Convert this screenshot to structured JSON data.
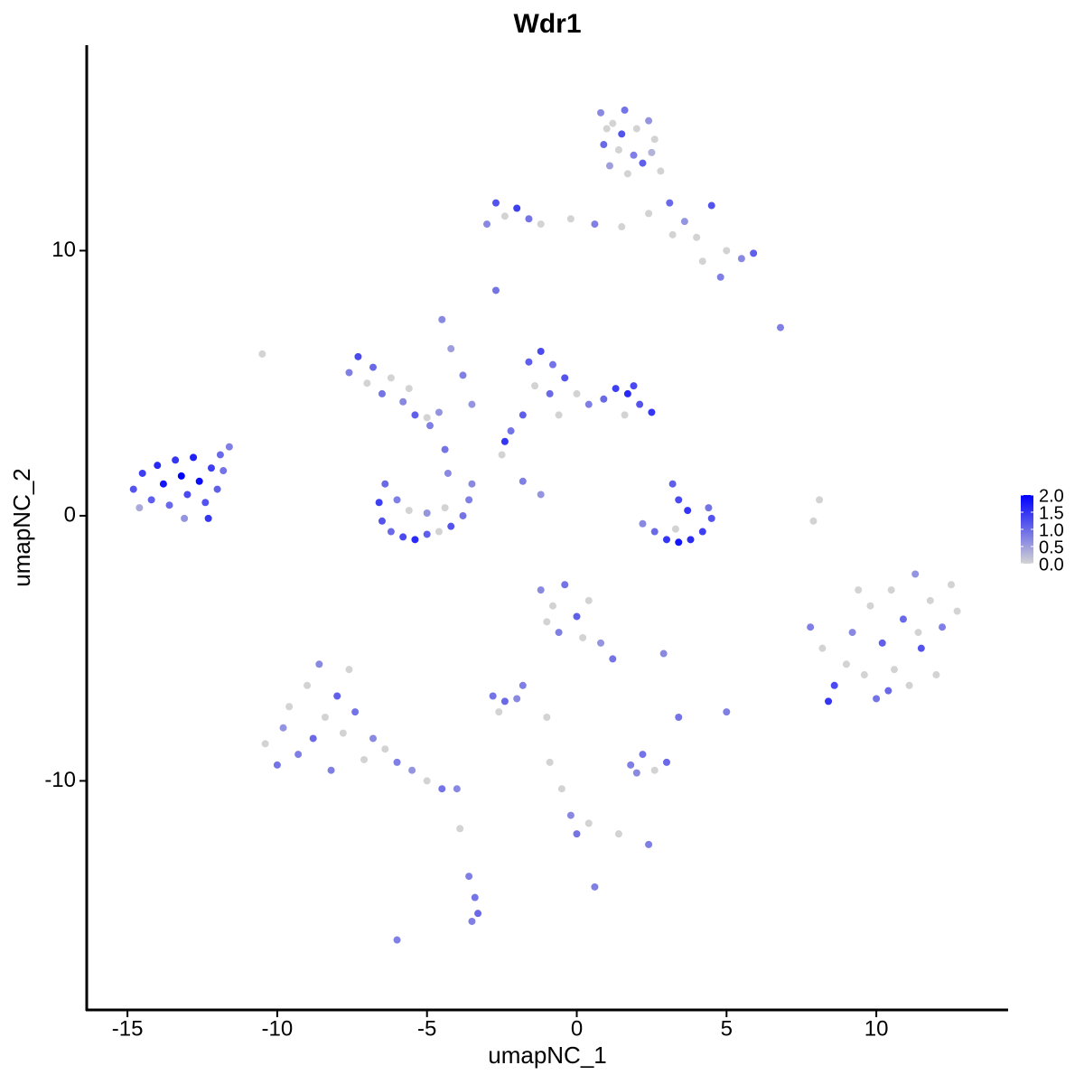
{
  "chart_data": {
    "type": "scatter",
    "title": "Wdr1",
    "x_label": "umapNC_1",
    "y_label": "umapNC_2",
    "xlim": [
      -16.36,
      14.4
    ],
    "ylim": [
      -18.64,
      17.75
    ],
    "xticks": [
      -15,
      -10,
      -5,
      0,
      5,
      10
    ],
    "yticks": [
      -10,
      0,
      10
    ],
    "color_low": "#d3d3d3",
    "color_high": "#0000ff",
    "clim": [
      0,
      2
    ],
    "cticks": [
      {
        "value": 0,
        "label": "0.0"
      },
      {
        "value": 0.5,
        "label": "0.5"
      },
      {
        "value": 1,
        "label": "1.0"
      },
      {
        "value": 1.5,
        "label": "1.5"
      },
      {
        "value": 2,
        "label": "2.0"
      }
    ],
    "x": [
      -14.8,
      -14.5,
      -14.2,
      -14.0,
      -13.8,
      -13.6,
      -13.4,
      -13.2,
      -13.0,
      -12.8,
      -12.6,
      -12.4,
      -12.2,
      -12.0,
      -12.3,
      -11.8,
      -11.6,
      -11.9,
      -14.6,
      -13.1,
      0.8,
      1.2,
      1.6,
      2.0,
      2.4,
      0.9,
      1.4,
      1.9,
      2.6,
      1.1,
      1.7,
      2.2,
      2.8,
      1.5,
      2.5,
      1.0,
      -3.0,
      -2.7,
      -2.4,
      -2.0,
      -1.6,
      -1.2,
      -0.2,
      0.6,
      1.5,
      2.4,
      3.1,
      3.6,
      4.0,
      4.5,
      5.0,
      5.5,
      5.9,
      4.8,
      4.2,
      3.2,
      -7.6,
      -7.3,
      -7.0,
      -6.8,
      -6.5,
      -6.2,
      -5.8,
      -5.4,
      -5.0,
      -4.6,
      -4.9,
      -5.6,
      -4.5,
      -4.2,
      -3.8,
      -3.5,
      -4.4,
      -4.3,
      -6.4,
      -6.6,
      -6.5,
      -6.2,
      -5.8,
      -5.4,
      -5.0,
      -4.6,
      -4.2,
      -3.8,
      -3.6,
      -3.5,
      -5.6,
      -5.0,
      -4.4,
      -6.0,
      -1.6,
      -1.2,
      -0.8,
      -1.4,
      -0.9,
      -0.4,
      0.0,
      0.4,
      0.9,
      1.3,
      1.7,
      2.1,
      2.5,
      1.6,
      -1.8,
      -2.2,
      -0.6,
      1.9,
      -2.4,
      -1.8,
      -1.2,
      -2.5,
      2.2,
      2.6,
      3.0,
      3.4,
      3.8,
      4.2,
      4.5,
      4.4,
      3.2,
      3.4,
      3.7,
      3.3,
      7.8,
      8.2,
      8.6,
      8.4,
      9.0,
      9.2,
      9.6,
      9.8,
      10.0,
      10.2,
      10.5,
      10.6,
      10.9,
      11.1,
      11.3,
      11.5,
      11.8,
      12.0,
      12.2,
      12.5,
      12.7,
      11.4,
      9.4,
      10.4,
      -10.4,
      -10.0,
      -9.8,
      -9.6,
      -9.3,
      -9.0,
      -8.8,
      -8.6,
      -8.4,
      -8.2,
      -8.0,
      -7.8,
      -7.6,
      -7.4,
      -7.1,
      -6.8,
      -6.4,
      -6.0,
      -5.5,
      -5.0,
      -4.5,
      -4.0,
      -1.2,
      -0.8,
      -0.4,
      0.0,
      0.4,
      -0.6,
      0.2,
      0.8,
      1.2,
      -1.0,
      -2.8,
      -2.4,
      -2.0,
      -1.8,
      -2.6,
      1.8,
      2.2,
      2.6,
      3.0,
      2.0,
      -0.9,
      -0.5,
      -0.2,
      0.0,
      0.4,
      1.4,
      2.4,
      -3.6,
      -3.4,
      -3.3,
      -3.5,
      -3.9,
      7.9,
      8.1,
      -10.5,
      -2.7,
      6.8,
      -6.0,
      0.6,
      5.0,
      3.4,
      2.9,
      -1.0
    ],
    "y": [
      1.0,
      1.6,
      0.6,
      1.9,
      1.2,
      0.4,
      2.1,
      1.5,
      0.8,
      2.2,
      1.3,
      0.5,
      1.8,
      1.0,
      -0.1,
      1.7,
      2.6,
      2.3,
      0.3,
      -0.1,
      15.2,
      14.8,
      15.3,
      14.6,
      14.9,
      14.0,
      13.8,
      13.6,
      14.2,
      13.2,
      12.9,
      13.3,
      13.0,
      14.4,
      13.7,
      14.6,
      11.0,
      11.8,
      11.3,
      11.6,
      11.2,
      11.0,
      11.2,
      11.0,
      10.9,
      11.4,
      11.8,
      11.1,
      10.5,
      11.7,
      10.0,
      9.7,
      9.9,
      9.0,
      9.6,
      10.6,
      5.4,
      6.0,
      5.0,
      5.6,
      4.6,
      5.2,
      4.3,
      3.8,
      3.7,
      3.9,
      3.4,
      4.8,
      7.4,
      6.3,
      5.3,
      4.2,
      2.5,
      1.6,
      1.2,
      0.5,
      -0.2,
      -0.6,
      -0.8,
      -0.9,
      -0.7,
      -0.6,
      -0.4,
      0.0,
      0.6,
      1.2,
      0.2,
      0.1,
      0.3,
      0.6,
      5.8,
      6.2,
      5.7,
      4.9,
      4.6,
      5.2,
      4.6,
      4.2,
      4.4,
      4.8,
      4.6,
      4.2,
      3.9,
      3.8,
      3.8,
      3.2,
      3.8,
      4.9,
      2.8,
      1.3,
      0.8,
      2.3,
      -0.3,
      -0.6,
      -0.9,
      -1.0,
      -0.9,
      -0.6,
      -0.1,
      0.3,
      1.2,
      0.6,
      0.2,
      -0.5,
      -4.2,
      -5.0,
      -6.4,
      -7.0,
      -5.6,
      -4.4,
      -6.0,
      -3.4,
      -6.9,
      -4.8,
      -2.8,
      -5.8,
      -3.9,
      -6.4,
      -2.2,
      -5.0,
      -3.2,
      -6.0,
      -4.2,
      -2.6,
      -3.6,
      -4.4,
      -2.8,
      -6.6,
      -8.6,
      -9.4,
      -8.0,
      -7.2,
      -9.0,
      -6.4,
      -8.4,
      -5.6,
      -7.6,
      -9.6,
      -6.8,
      -8.2,
      -5.8,
      -7.4,
      -9.2,
      -8.4,
      -8.8,
      -9.3,
      -9.6,
      -10.0,
      -10.3,
      -10.3,
      -2.8,
      -3.4,
      -2.6,
      -3.8,
      -3.2,
      -4.4,
      -4.6,
      -4.8,
      -5.4,
      -4.0,
      -6.8,
      -7.0,
      -6.9,
      -6.4,
      -7.4,
      -9.4,
      -9.0,
      -9.6,
      -9.3,
      -9.7,
      -9.3,
      -10.3,
      -11.3,
      -12.0,
      -11.6,
      -12.0,
      -12.4,
      -13.6,
      -14.4,
      -15.0,
      -15.3,
      -11.8,
      -0.2,
      0.6,
      6.1,
      8.5,
      7.1,
      -16.0,
      -14.0,
      -7.4,
      -7.6,
      -5.2,
      -7.6
    ],
    "values": [
      1.2,
      1.4,
      1.1,
      1.6,
      1.8,
      1.0,
      1.5,
      2.0,
      1.3,
      1.7,
      1.9,
      1.2,
      1.4,
      1.1,
      1.5,
      0.9,
      0.8,
      1.0,
      0.4,
      0.6,
      0.7,
      0,
      0.9,
      0,
      0.6,
      1.0,
      0,
      0.8,
      0,
      0.5,
      0,
      1.1,
      0,
      1.2,
      0.3,
      0,
      0.7,
      1.2,
      0,
      1.4,
      0.9,
      0,
      0,
      0.8,
      0,
      0,
      1.0,
      0.6,
      0,
      1.2,
      0,
      0.7,
      1.1,
      0.8,
      0,
      0,
      0.8,
      1.3,
      0,
      1.0,
      0.9,
      0,
      0.7,
      1.1,
      0,
      0.6,
      0.8,
      0,
      0.7,
      0.5,
      0.8,
      0.6,
      0.9,
      0.7,
      1.0,
      1.4,
      1.2,
      1.0,
      1.3,
      1.6,
      1.1,
      0,
      1.2,
      0.9,
      0.8,
      0.7,
      0,
      0.6,
      0,
      0.8,
      1.1,
      1.3,
      0.9,
      0,
      1.0,
      1.2,
      0,
      0.8,
      1.0,
      1.4,
      1.6,
      1.2,
      1.5,
      0,
      1.1,
      0.9,
      0,
      1.3,
      1.5,
      0.8,
      0.6,
      0,
      0.7,
      1.0,
      1.5,
      1.8,
      1.6,
      1.4,
      1.2,
      0.9,
      1.1,
      1.3,
      1.5,
      0,
      0.8,
      0,
      1.3,
      1.5,
      0,
      0.7,
      0,
      0,
      0.9,
      1.1,
      0,
      0,
      1.0,
      0,
      0.6,
      1.2,
      0,
      0,
      0.8,
      0,
      0,
      0,
      0,
      1.0,
      0,
      0.9,
      0.6,
      0,
      0.8,
      0,
      1.0,
      0.7,
      0,
      0.8,
      1.1,
      0,
      0,
      0.9,
      0,
      0.7,
      0,
      0.8,
      0.6,
      0,
      0.9,
      0.7,
      0.7,
      0,
      0.9,
      1.1,
      0,
      0.8,
      0,
      0.6,
      0.9,
      0,
      0.9,
      1.0,
      0.7,
      0.8,
      0,
      0.8,
      0.9,
      0,
      1.0,
      0.7,
      0,
      0,
      0.7,
      0.9,
      0,
      0,
      0.8,
      0.8,
      0.9,
      1.0,
      0.8,
      0,
      0,
      0,
      0,
      0.9,
      0.8,
      0.8,
      0.8,
      0.8,
      0.9,
      0.7,
      0
    ]
  }
}
